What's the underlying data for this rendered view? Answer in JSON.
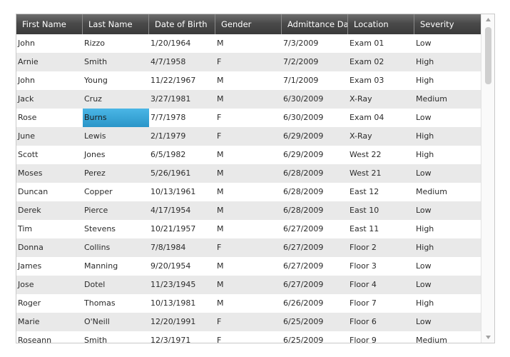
{
  "columns": [
    "First Name",
    "Last Name",
    "Date of Birth",
    "Gender",
    "Admittance Da",
    "Location",
    "Severity"
  ],
  "rows": [
    [
      "John",
      "Rizzo",
      "1/20/1964",
      "M",
      "7/3/2009",
      "Exam 01",
      "Low"
    ],
    [
      "Arnie",
      "Smith",
      "4/7/1958",
      "F",
      "7/2/2009",
      "Exam 02",
      "High"
    ],
    [
      "John",
      "Young",
      "11/22/1967",
      "M",
      "7/1/2009",
      "Exam 03",
      "High"
    ],
    [
      "Jack",
      "Cruz",
      "3/27/1981",
      "M",
      "6/30/2009",
      "X-Ray",
      "Medium"
    ],
    [
      "Rose",
      "Burns",
      "7/7/1978",
      "F",
      "6/30/2009",
      "Exam 04",
      "Low"
    ],
    [
      "June",
      "Lewis",
      "2/1/1979",
      "F",
      "6/29/2009",
      "X-Ray",
      "High"
    ],
    [
      "Scott",
      "Jones",
      "6/5/1982",
      "M",
      "6/29/2009",
      "West 22",
      "High"
    ],
    [
      "Moses",
      "Perez",
      "5/26/1961",
      "M",
      "6/28/2009",
      "West 21",
      "Low"
    ],
    [
      "Duncan",
      "Copper",
      "10/13/1961",
      "M",
      "6/28/2009",
      "East 12",
      "Medium"
    ],
    [
      "Derek",
      "Pierce",
      "4/17/1954",
      "M",
      "6/28/2009",
      "East 10",
      "Low"
    ],
    [
      "Tim",
      "Stevens",
      "10/21/1957",
      "M",
      "6/27/2009",
      "East 11",
      "High"
    ],
    [
      "Donna",
      "Collins",
      "7/8/1984",
      "F",
      "6/27/2009",
      "Floor 2",
      "High"
    ],
    [
      "James",
      "Manning",
      "9/20/1954",
      "M",
      "6/27/2009",
      "Floor 3",
      "Low"
    ],
    [
      "Jose",
      "Dotel",
      "11/23/1945",
      "M",
      "6/27/2009",
      "Floor 4",
      "Low"
    ],
    [
      "Roger",
      "Thomas",
      "10/13/1981",
      "M",
      "6/26/2009",
      "Floor 7",
      "High"
    ],
    [
      "Marie",
      "O'Neill",
      "12/20/1991",
      "F",
      "6/25/2009",
      "Floor 6",
      "Low"
    ],
    [
      "Roseann",
      "Smith",
      "12/3/1971",
      "F",
      "6/25/2009",
      "Floor 9",
      "Medium"
    ]
  ],
  "selected_cell": {
    "row": 4,
    "col": 1
  },
  "colors": {
    "header_top": "#6e6e6e",
    "header_bottom": "#3b3b3b",
    "alt_row": "#e9e9e9",
    "selection": "#2a95c8"
  },
  "icons": {
    "scroll_up": "triangle-up-icon",
    "scroll_down": "triangle-down-icon"
  }
}
